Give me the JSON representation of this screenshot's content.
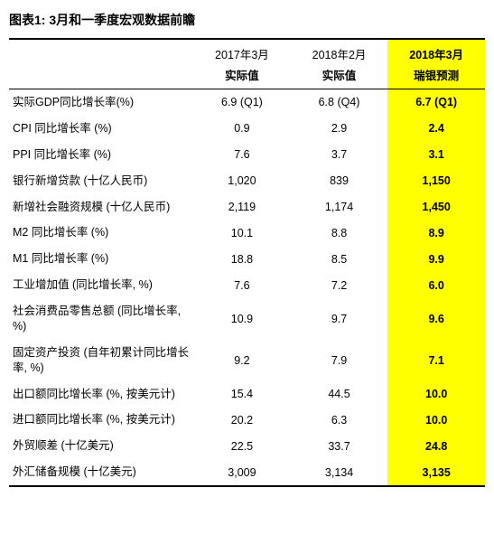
{
  "title": "图表1: 3月和一季度宏观数据前瞻",
  "columns": {
    "period": [
      "2017年3月",
      "2018年2月",
      "2018年3月"
    ],
    "subhead": [
      "实际值",
      "实际值",
      "瑞银预测"
    ]
  },
  "highlight_col_index": 2,
  "colors": {
    "highlight_bg": "#ffff00",
    "text": "#000000",
    "background": "#ffffff",
    "rule": "#000000"
  },
  "rows": [
    {
      "label": "实际GDP同比增长率(%)",
      "v": [
        "6.9 (Q1)",
        "6.8 (Q4)",
        "6.7 (Q1)"
      ]
    },
    {
      "label": "CPI 同比增长率 (%)",
      "v": [
        "0.9",
        "2.9",
        "2.4"
      ]
    },
    {
      "label": "PPI 同比增长率 (%)",
      "v": [
        "7.6",
        "3.7",
        "3.1"
      ]
    },
    {
      "label": "银行新增贷款 (十亿人民币)",
      "v": [
        "1,020",
        "839",
        "1,150"
      ]
    },
    {
      "label": "新增社会融资规模 (十亿人民币)",
      "v": [
        "2,119",
        "1,174",
        "1,450"
      ]
    },
    {
      "label": "M2 同比增长率 (%)",
      "v": [
        "10.1",
        "8.8",
        "8.9"
      ]
    },
    {
      "label": "M1 同比增长率 (%)",
      "v": [
        "18.8",
        "8.5",
        "9.9"
      ]
    },
    {
      "label": "工业增加值 (同比增长率, %)",
      "v": [
        "7.6",
        "7.2",
        "6.0"
      ]
    },
    {
      "label": "社会消费品零售总额 (同比增长率, %)",
      "v": [
        "10.9",
        "9.7",
        "9.6"
      ]
    },
    {
      "label": "固定资产投资 (自年初累计同比增长率, %)",
      "v": [
        "9.2",
        "7.9",
        "7.1"
      ]
    },
    {
      "label": "出口额同比增长率 (%, 按美元计)",
      "v": [
        "15.4",
        "44.5",
        "10.0"
      ]
    },
    {
      "label": "进口额同比增长率 (%, 按美元计)",
      "v": [
        "20.2",
        "6.3",
        "10.0"
      ]
    },
    {
      "label": "外贸顺差 (十亿美元)",
      "v": [
        "22.5",
        "33.7",
        "24.8"
      ]
    },
    {
      "label": "外汇储备规模 (十亿美元)",
      "v": [
        "3,009",
        "3,134",
        "3,135"
      ]
    }
  ],
  "fontsizes": {
    "title_pt": 14,
    "body_pt": 12.5
  }
}
